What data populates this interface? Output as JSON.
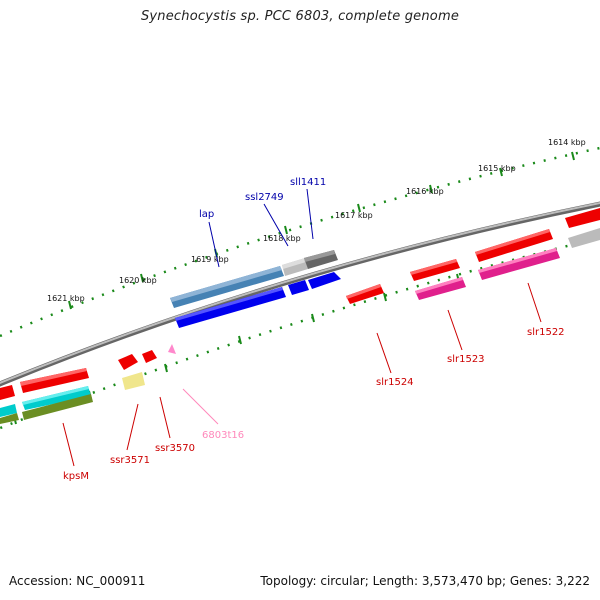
{
  "title": "Synechocystis sp. PCC 6803, complete genome",
  "footer": {
    "accession": "Accession: NC_000911",
    "summary": "Topology: circular; Length: 3,573,470 bp; Genes: 3,222"
  },
  "ruler": {
    "ticks": [
      "1614 kbp",
      "1615 kbp",
      "1616 kbp",
      "1617 kbp",
      "1618 kbp",
      "1619 kbp",
      "1620 kbp",
      "1621 kbp"
    ]
  },
  "colors": {
    "chromosome": "#888888",
    "tick": "#1a8a1a",
    "red_gene": "#ee0000",
    "blue_gene": "#0000ee",
    "steelblue_gene": "#4682b4",
    "gray_gene": "#bbbbbb",
    "darkgray_gene": "#666666",
    "magenta_gene": "#e0208c",
    "cyan_gene": "#00cccc",
    "olive_gene": "#6b8e23",
    "khaki_gene": "#f0e68c",
    "pink_gene": "#ff88cc",
    "blue_label": "#0000aa",
    "red_label": "#cc0000",
    "pink_label": "#ff88bb"
  },
  "gene_labels": {
    "lap": "lap",
    "ssl2749": "ssl2749",
    "sll1411": "sll1411",
    "slr1522": "slr1522",
    "slr1523": "slr1523",
    "slr1524": "slr1524",
    "kpsM": "kpsM",
    "ssr3571": "ssr3571",
    "ssr3570": "ssr3570",
    "t6803t16": "6803t16"
  }
}
